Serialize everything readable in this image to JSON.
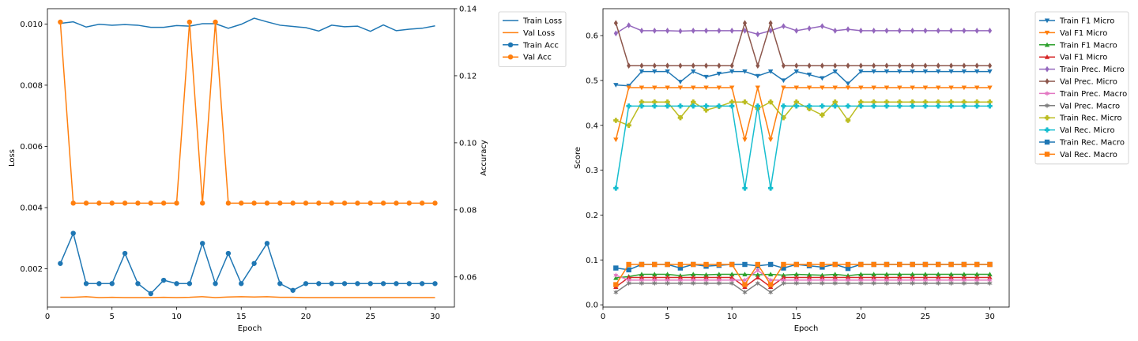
{
  "chart_data": [
    {
      "type": "line",
      "xlabel": "Epoch",
      "ylabel_left": "Loss",
      "ylabel_right": "Accuracy",
      "xlim": [
        0,
        31.5
      ],
      "ylim_left": [
        0.00075,
        0.0105
      ],
      "ylim_right": [
        0.051,
        0.14
      ],
      "x_ticks": [
        0,
        5,
        10,
        15,
        20,
        25,
        30
      ],
      "y_ticks_left": [
        0.002,
        0.004,
        0.006,
        0.008,
        0.01
      ],
      "y_ticks_right": [
        0.06,
        0.08,
        0.1,
        0.12,
        0.14
      ],
      "grid": false,
      "legend_position": "outside-right",
      "x": [
        1,
        2,
        3,
        4,
        5,
        6,
        7,
        8,
        9,
        10,
        11,
        12,
        13,
        14,
        15,
        16,
        17,
        18,
        19,
        20,
        21,
        22,
        23,
        24,
        25,
        26,
        27,
        28,
        29,
        30
      ],
      "series": [
        {
          "name": "Train Loss",
          "axis": "left",
          "color": "#1f77b4",
          "marker": "none",
          "values": [
            0.01002,
            0.01007,
            0.0099,
            0.00999,
            0.00996,
            0.00998,
            0.00996,
            0.00989,
            0.00989,
            0.00995,
            0.00993,
            0.01001,
            0.01001,
            0.00986,
            0.00999,
            0.01019,
            0.01007,
            0.00996,
            0.00992,
            0.00988,
            0.00977,
            0.00996,
            0.00991,
            0.00993,
            0.00976,
            0.00997,
            0.00978,
            0.00983,
            0.00986,
            0.00994
          ]
        },
        {
          "name": "Val Loss",
          "axis": "left",
          "color": "#ff7f0e",
          "marker": "none",
          "values": [
            0.00107,
            0.00107,
            0.00109,
            0.00106,
            0.00107,
            0.00106,
            0.00106,
            0.00106,
            0.00107,
            0.00106,
            0.00107,
            0.00109,
            0.00106,
            0.00108,
            0.00109,
            0.00108,
            0.00109,
            0.00107,
            0.00107,
            0.00106,
            0.00106,
            0.00106,
            0.00106,
            0.00106,
            0.00106,
            0.00106,
            0.00106,
            0.00106,
            0.00106,
            0.00106
          ]
        },
        {
          "name": "Train Acc",
          "axis": "right",
          "color": "#1f77b4",
          "marker": "circle",
          "values": [
            0.064,
            0.073,
            0.058,
            0.058,
            0.058,
            0.067,
            0.058,
            0.055,
            0.059,
            0.058,
            0.058,
            0.07,
            0.058,
            0.067,
            0.058,
            0.064,
            0.07,
            0.058,
            0.056,
            0.058,
            0.058,
            0.058,
            0.058,
            0.058,
            0.058,
            0.058,
            0.058,
            0.058,
            0.058,
            0.058
          ]
        },
        {
          "name": "Val Acc",
          "axis": "right",
          "color": "#ff7f0e",
          "marker": "circle",
          "values": [
            0.136,
            0.082,
            0.082,
            0.082,
            0.082,
            0.082,
            0.082,
            0.082,
            0.082,
            0.082,
            0.136,
            0.082,
            0.136,
            0.082,
            0.082,
            0.082,
            0.082,
            0.082,
            0.082,
            0.082,
            0.082,
            0.082,
            0.082,
            0.082,
            0.082,
            0.082,
            0.082,
            0.082,
            0.082,
            0.082
          ]
        }
      ]
    },
    {
      "type": "line",
      "xlabel": "Epoch",
      "ylabel": "Score",
      "xlim": [
        0,
        31.5
      ],
      "ylim": [
        -0.005,
        0.66
      ],
      "x_ticks": [
        0,
        5,
        10,
        15,
        20,
        25,
        30
      ],
      "y_ticks": [
        0.0,
        0.1,
        0.2,
        0.3,
        0.4,
        0.5,
        0.6
      ],
      "grid": false,
      "legend_position": "outside-right",
      "x": [
        1,
        2,
        3,
        4,
        5,
        6,
        7,
        8,
        9,
        10,
        11,
        12,
        13,
        14,
        15,
        16,
        17,
        18,
        19,
        20,
        21,
        22,
        23,
        24,
        25,
        26,
        27,
        28,
        29,
        30
      ],
      "series": [
        {
          "name": "Train F1 Micro",
          "color": "#1f77b4",
          "marker": "triangle-down",
          "values": [
            0.49,
            0.488,
            0.52,
            0.52,
            0.52,
            0.497,
            0.52,
            0.508,
            0.515,
            0.52,
            0.52,
            0.51,
            0.52,
            0.5,
            0.52,
            0.513,
            0.505,
            0.52,
            0.493,
            0.52,
            0.52,
            0.52,
            0.52,
            0.52,
            0.52,
            0.52,
            0.52,
            0.52,
            0.52,
            0.52
          ]
        },
        {
          "name": "Val F1 Micro",
          "color": "#ff7f0e",
          "marker": "triangle-down",
          "values": [
            0.368,
            0.484,
            0.484,
            0.484,
            0.484,
            0.484,
            0.484,
            0.484,
            0.484,
            0.484,
            0.368,
            0.484,
            0.368,
            0.484,
            0.484,
            0.484,
            0.484,
            0.484,
            0.484,
            0.484,
            0.484,
            0.484,
            0.484,
            0.484,
            0.484,
            0.484,
            0.484,
            0.484,
            0.484,
            0.484
          ]
        },
        {
          "name": "Train F1 Macro",
          "color": "#2ca02c",
          "marker": "triangle-up",
          "values": [
            0.06,
            0.063,
            0.068,
            0.068,
            0.068,
            0.065,
            0.068,
            0.067,
            0.068,
            0.068,
            0.068,
            0.067,
            0.068,
            0.066,
            0.068,
            0.067,
            0.066,
            0.068,
            0.065,
            0.068,
            0.068,
            0.068,
            0.068,
            0.068,
            0.068,
            0.068,
            0.068,
            0.068,
            0.068,
            0.068
          ]
        },
        {
          "name": "Val F1 Micro",
          "color": "#d62728",
          "marker": "triangle-up",
          "values": [
            0.04,
            0.061,
            0.061,
            0.061,
            0.061,
            0.061,
            0.061,
            0.061,
            0.061,
            0.061,
            0.04,
            0.061,
            0.04,
            0.061,
            0.061,
            0.061,
            0.061,
            0.061,
            0.061,
            0.061,
            0.061,
            0.061,
            0.061,
            0.061,
            0.061,
            0.061,
            0.061,
            0.061,
            0.061,
            0.061
          ]
        },
        {
          "name": "Train Prec. Micro",
          "color": "#9467bd",
          "marker": "diamond",
          "values": [
            0.605,
            0.623,
            0.611,
            0.611,
            0.611,
            0.61,
            0.611,
            0.611,
            0.611,
            0.611,
            0.611,
            0.603,
            0.611,
            0.621,
            0.611,
            0.616,
            0.621,
            0.611,
            0.614,
            0.611,
            0.611,
            0.611,
            0.611,
            0.611,
            0.611,
            0.611,
            0.611,
            0.611,
            0.611,
            0.611
          ]
        },
        {
          "name": "Val Prec. Micro",
          "color": "#8c564b",
          "marker": "diamond",
          "values": [
            0.628,
            0.533,
            0.533,
            0.533,
            0.533,
            0.533,
            0.533,
            0.533,
            0.533,
            0.533,
            0.628,
            0.533,
            0.628,
            0.533,
            0.533,
            0.533,
            0.533,
            0.533,
            0.533,
            0.533,
            0.533,
            0.533,
            0.533,
            0.533,
            0.533,
            0.533,
            0.533,
            0.533,
            0.533,
            0.533
          ]
        },
        {
          "name": "Train Prec. Macro",
          "color": "#e377c2",
          "marker": "star",
          "values": [
            0.066,
            0.055,
            0.055,
            0.055,
            0.055,
            0.055,
            0.055,
            0.055,
            0.055,
            0.055,
            0.055,
            0.077,
            0.055,
            0.055,
            0.055,
            0.055,
            0.055,
            0.055,
            0.055,
            0.055,
            0.055,
            0.055,
            0.055,
            0.055,
            0.055,
            0.055,
            0.055,
            0.055,
            0.055,
            0.055
          ]
        },
        {
          "name": "Val Prec. Macro",
          "color": "#7f7f7f",
          "marker": "star",
          "values": [
            0.028,
            0.048,
            0.048,
            0.048,
            0.048,
            0.048,
            0.048,
            0.048,
            0.048,
            0.048,
            0.028,
            0.048,
            0.028,
            0.048,
            0.048,
            0.048,
            0.048,
            0.048,
            0.048,
            0.048,
            0.048,
            0.048,
            0.048,
            0.048,
            0.048,
            0.048,
            0.048,
            0.048,
            0.048,
            0.048
          ]
        },
        {
          "name": "Train Rec. Micro",
          "color": "#bcbd22",
          "marker": "plus",
          "values": [
            0.411,
            0.4,
            0.452,
            0.452,
            0.452,
            0.417,
            0.452,
            0.434,
            0.442,
            0.452,
            0.452,
            0.437,
            0.452,
            0.417,
            0.452,
            0.437,
            0.423,
            0.452,
            0.411,
            0.452,
            0.452,
            0.452,
            0.452,
            0.452,
            0.452,
            0.452,
            0.452,
            0.452,
            0.452,
            0.452
          ]
        },
        {
          "name": "Val Rec. Micro",
          "color": "#17becf",
          "marker": "plus",
          "values": [
            0.26,
            0.443,
            0.443,
            0.443,
            0.443,
            0.443,
            0.443,
            0.443,
            0.443,
            0.443,
            0.26,
            0.443,
            0.26,
            0.443,
            0.443,
            0.443,
            0.443,
            0.443,
            0.443,
            0.443,
            0.443,
            0.443,
            0.443,
            0.443,
            0.443,
            0.443,
            0.443,
            0.443,
            0.443,
            0.443
          ]
        },
        {
          "name": "Train Rec. Macro",
          "color": "#1f77b4",
          "marker": "square",
          "values": [
            0.082,
            0.078,
            0.09,
            0.09,
            0.09,
            0.082,
            0.09,
            0.086,
            0.088,
            0.09,
            0.09,
            0.087,
            0.09,
            0.082,
            0.09,
            0.087,
            0.084,
            0.09,
            0.081,
            0.09,
            0.09,
            0.09,
            0.09,
            0.09,
            0.09,
            0.09,
            0.09,
            0.09,
            0.09,
            0.09
          ]
        },
        {
          "name": "Val Rec. Macro",
          "color": "#ff7f0e",
          "marker": "square",
          "values": [
            0.045,
            0.09,
            0.09,
            0.09,
            0.09,
            0.09,
            0.09,
            0.09,
            0.09,
            0.09,
            0.045,
            0.09,
            0.045,
            0.09,
            0.09,
            0.09,
            0.09,
            0.09,
            0.09,
            0.09,
            0.09,
            0.09,
            0.09,
            0.09,
            0.09,
            0.09,
            0.09,
            0.09,
            0.09,
            0.09
          ]
        }
      ]
    }
  ]
}
